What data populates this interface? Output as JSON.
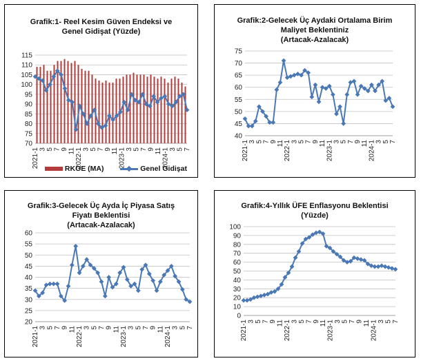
{
  "chart_data": [
    {
      "type": "bar",
      "title_lines": [
        "Grafik:1- Reel Kesim Güven Endeksi ve",
        "Genel Gidişat (Yüzde)"
      ],
      "ylim": [
        70,
        115
      ],
      "yticks": [
        70,
        75,
        80,
        85,
        90,
        95,
        100,
        105,
        110,
        115
      ],
      "x_ticks": [
        "2021-1",
        "3",
        "5",
        "7",
        "9",
        "11",
        "2022-1",
        "3",
        "5",
        "7",
        "9",
        "11",
        "2023-1",
        "3",
        "5",
        "7",
        "9",
        "11",
        "2024-1",
        "3",
        "5",
        "7"
      ],
      "series": [
        {
          "name": "RKGE (MA)",
          "type": "bar",
          "color": "#B23B3B",
          "values": [
            109,
            109,
            110,
            107,
            107,
            110,
            112,
            112,
            113,
            112,
            111,
            112,
            110,
            108,
            107,
            107,
            105,
            103,
            102,
            101,
            102,
            101,
            101,
            103,
            103,
            104,
            105,
            105,
            106,
            105,
            105,
            105,
            104,
            105,
            104,
            103,
            104,
            103,
            101,
            103,
            104,
            103,
            101,
            99
          ]
        },
        {
          "name": "Genel Gidişat",
          "type": "line",
          "color": "#4A78B5",
          "values": [
            104,
            103,
            102,
            97,
            100,
            104,
            107,
            105,
            98,
            92,
            91,
            77,
            89,
            85,
            80,
            84,
            87,
            80,
            78,
            79,
            84,
            82,
            84,
            86,
            91,
            87,
            95,
            92,
            91,
            95,
            90,
            89,
            94,
            91,
            93,
            94,
            90,
            89,
            91,
            94,
            95,
            87
          ]
        }
      ]
    },
    {
      "type": "line",
      "title_lines": [
        "Grafik:2-Gelecek Üç Aydaki Ortalama Birim",
        "Maliyet Beklentiniz",
        "(Artacak-Azalacak)"
      ],
      "ylim": [
        40,
        75
      ],
      "yticks": [
        40,
        45,
        50,
        55,
        60,
        65,
        70,
        75
      ],
      "x_ticks": [
        "2021-1",
        "3",
        "5",
        "7",
        "9",
        "11",
        "2022-1",
        "3",
        "5",
        "7",
        "9",
        "11",
        "2023-1",
        "3",
        "5",
        "7",
        "9",
        "11",
        "2024-1",
        "3",
        "5",
        "7"
      ],
      "series": [
        {
          "name": "",
          "color": "#4A78B5",
          "values": [
            47,
            44,
            44,
            46,
            52,
            50,
            48,
            45.5,
            45.5,
            59,
            62,
            71,
            64,
            64.5,
            65,
            65.5,
            65,
            67,
            66,
            56,
            61,
            54,
            60,
            59.5,
            60.5,
            57,
            49,
            52,
            45,
            57,
            62,
            62.5,
            57,
            60.5,
            59.5,
            58.5,
            61,
            58.5,
            61,
            62.5,
            54.5,
            55.5,
            52
          ]
        }
      ]
    },
    {
      "type": "line",
      "title_lines": [
        "Grafik:3-Gelecek Üç Ayda İç Piyasa Satış",
        "Fiyatı Beklentisi",
        "(Artacak-Azalacak)"
      ],
      "ylim": [
        20,
        60
      ],
      "yticks": [
        20,
        25,
        30,
        35,
        40,
        45,
        50,
        55,
        60
      ],
      "x_ticks": [
        "2021-1",
        "3",
        "5",
        "7",
        "9",
        "11",
        "2022-1",
        "3",
        "5",
        "7",
        "9",
        "11",
        "2023-1",
        "3",
        "5",
        "7",
        "9",
        "11",
        "2024-1",
        "3",
        "5",
        "7"
      ],
      "series": [
        {
          "name": "",
          "color": "#4A78B5",
          "values": [
            34,
            31.5,
            33,
            36.5,
            37,
            37,
            37,
            31.5,
            29.5,
            36,
            45.5,
            54,
            42,
            45,
            48,
            45.5,
            44,
            42,
            38,
            31.5,
            40,
            35.5,
            37,
            42,
            44.5,
            39,
            36,
            37,
            34,
            43.5,
            45.5,
            41.5,
            38.5,
            34,
            38,
            41,
            43,
            45,
            40.5,
            38,
            34.5,
            30,
            29
          ]
        }
      ]
    },
    {
      "type": "line",
      "title_lines": [
        "Grafik:4-Yıllık ÜFE Enflasyonu Beklentisi",
        "(Yüzde)"
      ],
      "ylim": [
        0,
        100
      ],
      "yticks": [
        0,
        10,
        20,
        30,
        40,
        50,
        60,
        70,
        80,
        90,
        100
      ],
      "x_ticks": [
        "2021-1",
        "3",
        "5",
        "7",
        "9",
        "11",
        "2022-1",
        "3",
        "5",
        "7",
        "9",
        "11",
        "2023-1",
        "3",
        "5",
        "7",
        "9",
        "11",
        "2024-1",
        "3",
        "5",
        "7"
      ],
      "series": [
        {
          "name": "",
          "color": "#4A78B5",
          "values": [
            17,
            17,
            18,
            20,
            21,
            22,
            23,
            24,
            26,
            27,
            30,
            35,
            43,
            48,
            55,
            65,
            72,
            81,
            86,
            88,
            91,
            93,
            94,
            92,
            78,
            76,
            72,
            69,
            66,
            62,
            60,
            61,
            65,
            64,
            63,
            62,
            58,
            56,
            55,
            55,
            56,
            55,
            54,
            53,
            52
          ]
        }
      ]
    }
  ],
  "legend": {
    "chart1": {
      "bar_label": "RKGE (MA)",
      "line_label": "Genel Gidişat"
    }
  },
  "colors": {
    "bar": "#B23B3B",
    "line": "#4A78B5",
    "grid": "#BFBFBF"
  }
}
